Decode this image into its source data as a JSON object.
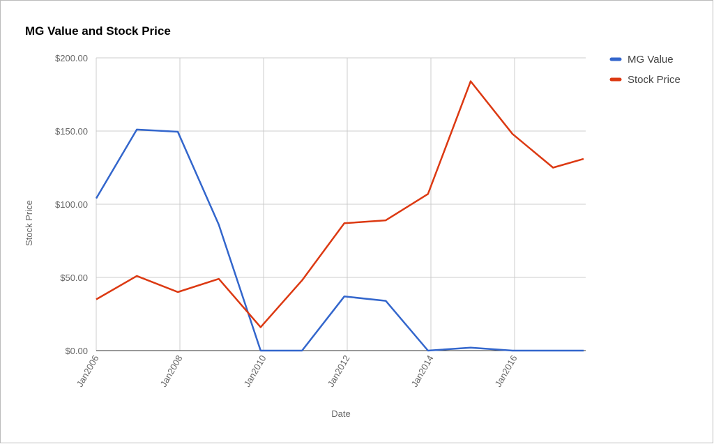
{
  "chart_data": {
    "type": "line",
    "title": "MG Value and Stock Price",
    "x_label": "Date",
    "y_label": "Stock Price",
    "x": [
      2006.0,
      2006.97,
      2007.95,
      2008.93,
      2009.93,
      2010.92,
      2011.93,
      2012.92,
      2013.93,
      2014.95,
      2015.95,
      2016.92,
      2017.65
    ],
    "xlim": [
      2006,
      2017.7
    ],
    "xticks": [
      {
        "value": 2006,
        "label": "Jan2006"
      },
      {
        "value": 2008,
        "label": "Jan2008"
      },
      {
        "value": 2010,
        "label": "Jan2010"
      },
      {
        "value": 2012,
        "label": "Jan2012"
      },
      {
        "value": 2014,
        "label": "Jan2014"
      },
      {
        "value": 2016,
        "label": "Jan2016"
      }
    ],
    "ylim": [
      0,
      200
    ],
    "yticks": [
      {
        "value": 0,
        "label": "$0.00"
      },
      {
        "value": 50,
        "label": "$50.00"
      },
      {
        "value": 100,
        "label": "$100.00"
      },
      {
        "value": 150,
        "label": "$150.00"
      },
      {
        "value": 200,
        "label": "$200.00"
      }
    ],
    "grid": true,
    "series": [
      {
        "name": "MG Value",
        "color": "#3366cc",
        "values": [
          104,
          151,
          149.5,
          86,
          0,
          0,
          37,
          34,
          0,
          2,
          0,
          0,
          0
        ]
      },
      {
        "name": "Stock Price",
        "color": "#dc3912",
        "values": [
          35,
          51,
          40,
          49,
          16,
          48,
          87,
          89,
          107,
          184,
          148,
          125,
          131
        ]
      }
    ]
  }
}
